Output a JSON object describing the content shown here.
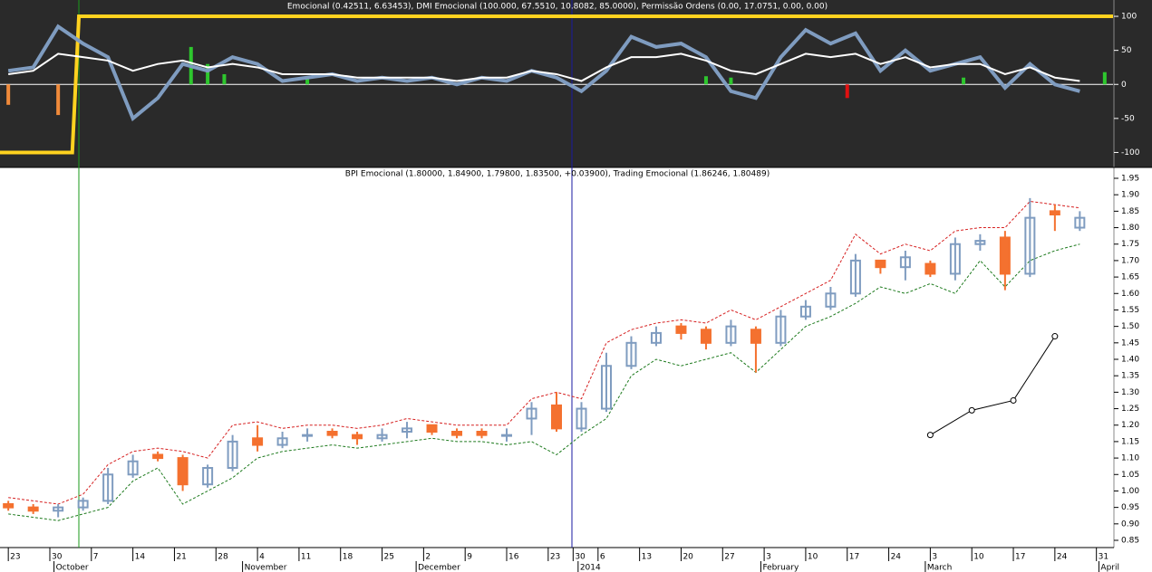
{
  "chart_data": [
    {
      "type": "line",
      "title": "Emocional (0.42511, 6.63453), DMI Emocional (100.000, 67.5510, 10.8082, 85.0000), Permissão Ordens (0.00, 17.0751, 0.00, 0.00)",
      "xlim": [
        0,
        134
      ],
      "ylim": [
        -122,
        124
      ],
      "yticks": [
        100,
        50,
        0,
        -50,
        -100
      ],
      "series": [
        {
          "color": "#ffd21f",
          "width": 4,
          "x": [
            0,
            8.7,
            9.5,
            134
          ],
          "values": [
            -100,
            -100,
            100,
            100
          ]
        },
        {
          "color": "#7f9cc0",
          "width": 4,
          "x": [
            1,
            4,
            7,
            10,
            13,
            16,
            19,
            22,
            25,
            28,
            31,
            34,
            37,
            40,
            43,
            46,
            49,
            52,
            55,
            58,
            61,
            64,
            67,
            70,
            73,
            76,
            79,
            82,
            85,
            88,
            91,
            94,
            97,
            100,
            103,
            106,
            109,
            112,
            115,
            118,
            121,
            124,
            127,
            130
          ],
          "values": [
            20,
            25,
            85,
            60,
            40,
            -50,
            -20,
            30,
            20,
            40,
            30,
            5,
            10,
            15,
            5,
            10,
            5,
            10,
            0,
            10,
            5,
            20,
            10,
            -10,
            20,
            70,
            55,
            60,
            40,
            -10,
            -20,
            40,
            80,
            60,
            75,
            20,
            50,
            20,
            30,
            40,
            -5,
            30,
            0,
            -10
          ]
        },
        {
          "color": "#ffffff",
          "width": 2,
          "x": [
            1,
            4,
            7,
            10,
            13,
            16,
            19,
            22,
            25,
            28,
            31,
            34,
            37,
            40,
            43,
            46,
            49,
            52,
            55,
            58,
            61,
            64,
            67,
            70,
            73,
            76,
            79,
            82,
            85,
            88,
            91,
            94,
            97,
            100,
            103,
            106,
            109,
            112,
            115,
            118,
            121,
            124,
            127,
            130
          ],
          "values": [
            15,
            20,
            45,
            40,
            35,
            20,
            30,
            35,
            25,
            30,
            25,
            15,
            15,
            15,
            10,
            10,
            10,
            10,
            5,
            10,
            10,
            20,
            15,
            5,
            25,
            40,
            40,
            45,
            35,
            20,
            15,
            30,
            45,
            40,
            45,
            30,
            40,
            25,
            30,
            30,
            15,
            25,
            10,
            5
          ]
        }
      ],
      "bars": {
        "x": [
          1,
          7,
          23,
          25,
          27,
          37,
          85,
          88,
          102,
          116,
          133
        ],
        "values": [
          -30,
          -45,
          55,
          30,
          15,
          12,
          12,
          10,
          -20,
          10,
          18
        ],
        "colors": [
          "#f08a3a",
          "#f08a3a",
          "#2ec72e",
          "#2ec72e",
          "#2ec72e",
          "#2ec72e",
          "#2ec72e",
          "#2ec72e",
          "#e01010",
          "#2ec72e",
          "#2ec72e"
        ]
      }
    },
    {
      "type": "candlestick",
      "title": "BPI Emocional (1.80000, 1.84900, 1.79800, 1.83500, +0.03900), Trading Emocional (1.86246, 1.80489)",
      "xlim": [
        0,
        134
      ],
      "ylim": [
        0.828,
        1.983
      ],
      "yticks": [
        0.85,
        {
          "value": 0.9,
          "label": "0.90"
        },
        0.95,
        {
          "value": 1,
          "label": "1.00"
        },
        1.05,
        {
          "value": 1.1,
          "label": "1.10"
        },
        1.15,
        {
          "value": 1.2,
          "label": "1.20"
        },
        1.25,
        {
          "value": 1.3,
          "label": "1.30"
        },
        1.35,
        {
          "value": 1.4,
          "label": "1.40"
        },
        1.45,
        {
          "value": 1.5,
          "label": "1.50"
        },
        1.55,
        {
          "value": 1.6,
          "label": "1.60"
        },
        1.65,
        {
          "value": 1.7,
          "label": "1.70"
        },
        1.75,
        {
          "value": 1.8,
          "label": "1.80"
        },
        1.85,
        {
          "value": 1.9,
          "label": "1.90"
        },
        1.95
      ],
      "xticks": [
        {
          "value": 1,
          "label": "23"
        },
        {
          "value": 6,
          "label": "30"
        },
        {
          "value": 11,
          "label": "7"
        },
        {
          "value": 16,
          "label": "14"
        },
        {
          "value": 21,
          "label": "21"
        },
        {
          "value": 26,
          "label": "28"
        },
        {
          "value": 31,
          "label": "4"
        },
        {
          "value": 36,
          "label": "11"
        },
        {
          "value": 41,
          "label": "18"
        },
        {
          "value": 46,
          "label": "25"
        },
        {
          "value": 51,
          "label": "2"
        },
        {
          "value": 56,
          "label": "9"
        },
        {
          "value": 61,
          "label": "16"
        },
        {
          "value": 66,
          "label": "23"
        },
        {
          "value": 69,
          "label": "30"
        },
        {
          "value": 72,
          "label": "6"
        },
        {
          "value": 77,
          "label": "13"
        },
        {
          "value": 82,
          "label": "20"
        },
        {
          "value": 87,
          "label": "27"
        },
        {
          "value": 92,
          "label": "3"
        },
        {
          "value": 97,
          "label": "10"
        },
        {
          "value": 102,
          "label": "17"
        },
        {
          "value": 107,
          "label": "24"
        },
        {
          "value": 112,
          "label": "3"
        },
        {
          "value": 117,
          "label": "10"
        },
        {
          "value": 122,
          "label": "17"
        },
        {
          "value": 127,
          "label": "24"
        },
        {
          "value": 132,
          "label": "31"
        }
      ],
      "month_labels": [
        {
          "value": 6.5,
          "label": "October"
        },
        {
          "value": 29.2,
          "label": "November"
        },
        {
          "value": 50.1,
          "label": "December"
        },
        {
          "value": 69.6,
          "label": "2014"
        },
        {
          "value": 91.6,
          "label": "February"
        },
        {
          "value": 111.4,
          "label": "March"
        },
        {
          "value": 132.3,
          "label": "April"
        }
      ],
      "up_color": "#7f9cc0",
      "down_color": "#f4712f",
      "x": [
        1,
        4,
        7,
        10,
        13,
        16,
        19,
        22,
        25,
        28,
        31,
        34,
        37,
        40,
        43,
        46,
        49,
        52,
        55,
        58,
        61,
        64,
        67,
        70,
        73,
        76,
        79,
        82,
        85,
        88,
        91,
        94,
        97,
        100,
        103,
        106,
        109,
        112,
        115,
        118,
        121,
        124,
        127,
        130
      ],
      "open": [
        0.96,
        0.95,
        0.94,
        0.95,
        0.97,
        1.05,
        1.11,
        1.1,
        1.02,
        1.07,
        1.16,
        1.14,
        1.17,
        1.18,
        1.17,
        1.16,
        1.18,
        1.2,
        1.18,
        1.18,
        1.17,
        1.22,
        1.26,
        1.19,
        1.25,
        1.38,
        1.45,
        1.5,
        1.49,
        1.45,
        1.49,
        1.45,
        1.53,
        1.56,
        1.6,
        1.7,
        1.68,
        1.69,
        1.66,
        1.75,
        1.77,
        1.66,
        1.85,
        1.8
      ],
      "high": [
        0.97,
        0.96,
        0.96,
        0.98,
        1.07,
        1.11,
        1.12,
        1.11,
        1.08,
        1.17,
        1.2,
        1.18,
        1.19,
        1.19,
        1.18,
        1.19,
        1.21,
        1.2,
        1.19,
        1.19,
        1.19,
        1.27,
        1.3,
        1.27,
        1.42,
        1.47,
        1.5,
        1.51,
        1.5,
        1.52,
        1.5,
        1.55,
        1.58,
        1.62,
        1.72,
        1.7,
        1.73,
        1.7,
        1.77,
        1.78,
        1.79,
        1.89,
        1.87,
        1.85
      ],
      "low": [
        0.94,
        0.93,
        0.92,
        0.94,
        0.96,
        1.04,
        1.09,
        1.0,
        1.01,
        1.06,
        1.12,
        1.13,
        1.15,
        1.16,
        1.14,
        1.15,
        1.16,
        1.17,
        1.16,
        1.16,
        1.15,
        1.17,
        1.18,
        1.18,
        1.24,
        1.37,
        1.44,
        1.46,
        1.43,
        1.44,
        1.36,
        1.44,
        1.52,
        1.55,
        1.59,
        1.66,
        1.64,
        1.65,
        1.64,
        1.73,
        1.61,
        1.65,
        1.79,
        1.79
      ],
      "close": [
        0.95,
        0.94,
        0.95,
        0.97,
        1.05,
        1.09,
        1.1,
        1.02,
        1.07,
        1.15,
        1.14,
        1.16,
        1.17,
        1.17,
        1.16,
        1.17,
        1.19,
        1.18,
        1.17,
        1.17,
        1.17,
        1.25,
        1.19,
        1.25,
        1.38,
        1.45,
        1.48,
        1.48,
        1.45,
        1.5,
        1.45,
        1.53,
        1.56,
        1.6,
        1.7,
        1.68,
        1.71,
        1.66,
        1.75,
        1.76,
        1.66,
        1.83,
        1.84,
        1.83
      ],
      "bands": [
        {
          "color": "#d62020",
          "values": [
            0.98,
            0.97,
            0.96,
            0.99,
            1.08,
            1.12,
            1.13,
            1.12,
            1.1,
            1.2,
            1.21,
            1.19,
            1.2,
            1.2,
            1.19,
            1.2,
            1.22,
            1.21,
            1.2,
            1.2,
            1.2,
            1.28,
            1.3,
            1.28,
            1.45,
            1.49,
            1.51,
            1.52,
            1.51,
            1.55,
            1.52,
            1.56,
            1.6,
            1.64,
            1.78,
            1.72,
            1.75,
            1.73,
            1.79,
            1.8,
            1.8,
            1.88,
            1.87,
            1.86
          ]
        },
        {
          "color": "#1d7a1d",
          "values": [
            0.93,
            0.92,
            0.91,
            0.93,
            0.95,
            1.03,
            1.07,
            0.96,
            1.0,
            1.04,
            1.1,
            1.12,
            1.13,
            1.14,
            1.13,
            1.14,
            1.15,
            1.16,
            1.15,
            1.15,
            1.14,
            1.15,
            1.11,
            1.17,
            1.22,
            1.35,
            1.4,
            1.38,
            1.4,
            1.42,
            1.36,
            1.43,
            1.5,
            1.53,
            1.57,
            1.62,
            1.6,
            1.63,
            1.6,
            1.7,
            1.62,
            1.7,
            1.73,
            1.75
          ]
        }
      ],
      "projection": {
        "color": "#000000",
        "x": [
          112,
          117,
          122,
          127
        ],
        "values": [
          1.17,
          1.245,
          1.275,
          1.47
        ]
      }
    }
  ]
}
